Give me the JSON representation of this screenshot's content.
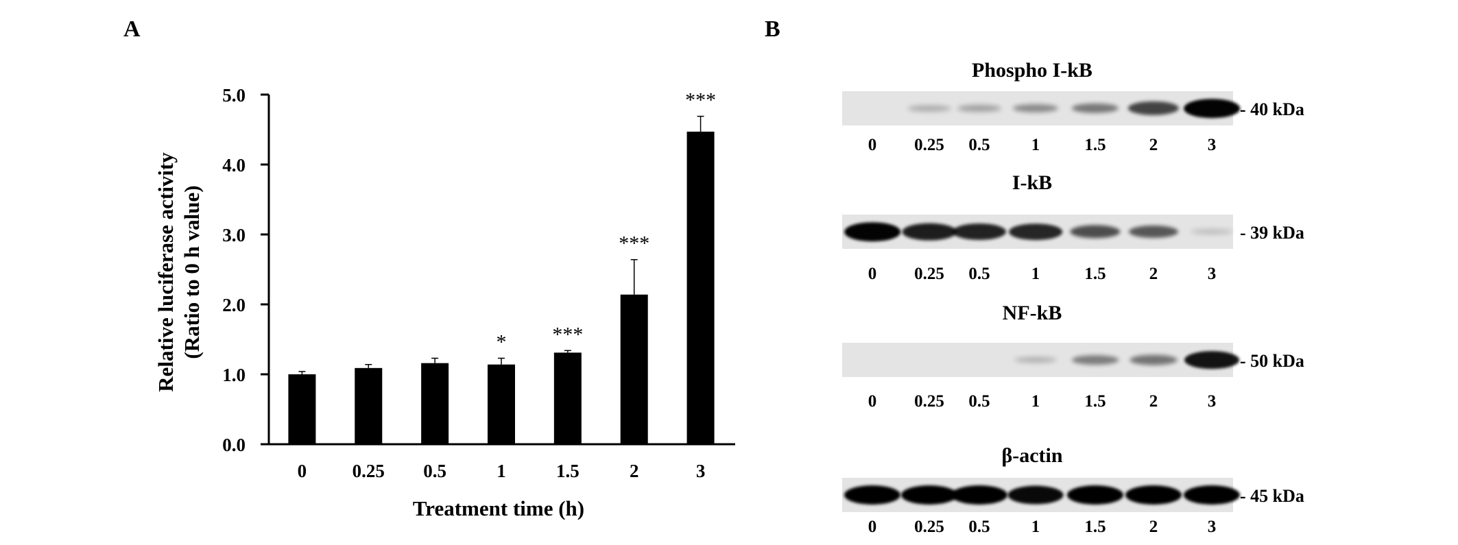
{
  "panel_a_letter": "A",
  "panel_b_letter": "B",
  "chart_data": {
    "type": "bar",
    "categories": [
      "0",
      "0.25",
      "0.5",
      "1",
      "1.5",
      "2",
      "3"
    ],
    "values": [
      1.0,
      1.09,
      1.16,
      1.14,
      1.31,
      2.14,
      4.47
    ],
    "errors": [
      0.04,
      0.05,
      0.07,
      0.09,
      0.03,
      0.5,
      0.22
    ],
    "significance": [
      "",
      "",
      "",
      "*",
      "***",
      "***",
      "***"
    ],
    "xlabel": "Treatment time (h)",
    "ylabel_line1": "Relative luciferase  activity",
    "ylabel_line2": "(Ratio to 0 h value)",
    "ylim": [
      0,
      5
    ],
    "yticks": [
      "0.0",
      "1.0",
      "2.0",
      "3.0",
      "4.0",
      "5.0"
    ],
    "bar_color": "#000000",
    "grid": false
  },
  "blots": [
    {
      "title": "Phospho I-kB",
      "kda": "- 40 kDa",
      "lanes": [
        "0",
        "0.25",
        "0.5",
        "1",
        "1.5",
        "2",
        "3"
      ],
      "intensities": [
        0.0,
        0.12,
        0.18,
        0.28,
        0.38,
        0.65,
        0.98
      ]
    },
    {
      "title": "I-kB",
      "kda": "- 39 kDa",
      "lanes": [
        "0",
        "0.25",
        "0.5",
        "1",
        "1.5",
        "2",
        "3"
      ],
      "intensities": [
        0.98,
        0.85,
        0.82,
        0.8,
        0.6,
        0.55,
        0.05
      ]
    },
    {
      "title": "NF-kB",
      "kda": "- 50 kDa",
      "lanes": [
        "0",
        "0.25",
        "0.5",
        "1",
        "1.5",
        "2",
        "3"
      ],
      "intensities": [
        0.0,
        0.0,
        0.0,
        0.1,
        0.35,
        0.4,
        0.9
      ]
    },
    {
      "title": "β-actin",
      "kda": "- 45 kDa",
      "lanes": [
        "0",
        "0.25",
        "0.5",
        "1",
        "1.5",
        "2",
        "3"
      ],
      "intensities": [
        1.0,
        1.0,
        1.0,
        0.95,
        1.0,
        1.0,
        1.0
      ]
    }
  ]
}
